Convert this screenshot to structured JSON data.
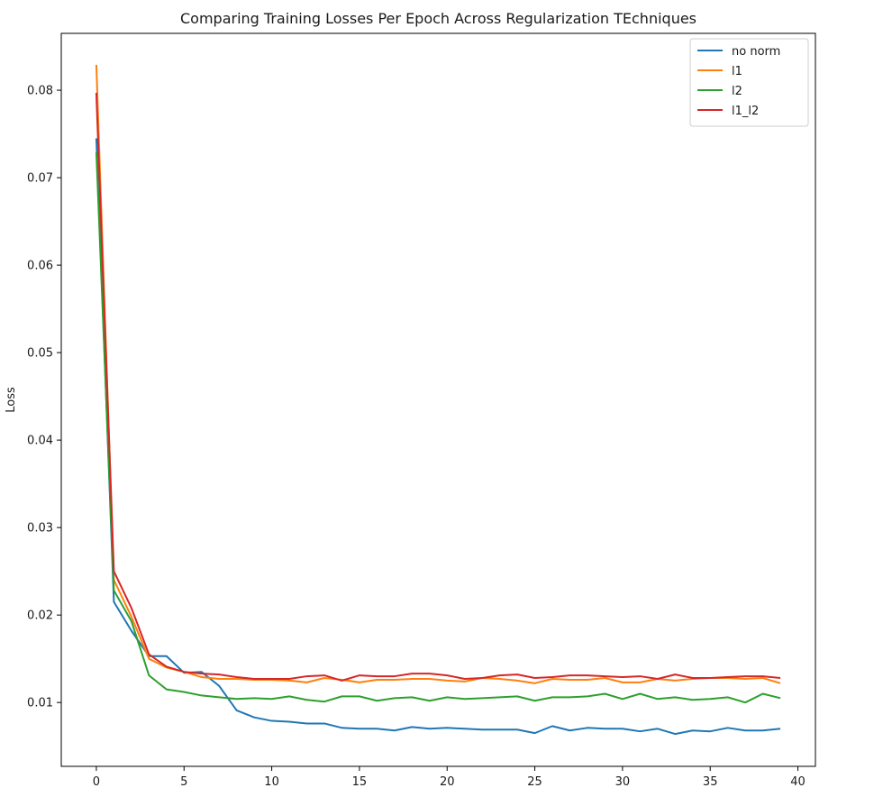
{
  "chart_data": {
    "type": "line",
    "title": "Comparing Training Losses Per Epoch Across Regularization TEchniques",
    "xlabel": "",
    "ylabel": "Loss",
    "xlim": [
      -2,
      41
    ],
    "ylim": [
      0.0027,
      0.0865
    ],
    "xticks": [
      0,
      5,
      10,
      15,
      20,
      25,
      30,
      35,
      40
    ],
    "yticks": [
      0.01,
      0.02,
      0.03,
      0.04,
      0.05,
      0.06,
      0.07,
      0.08
    ],
    "ytick_labels": [
      "0.01",
      "0.02",
      "0.03",
      "0.04",
      "0.05",
      "0.06",
      "0.07",
      "0.08"
    ],
    "legend_position": "upper right",
    "grid": false,
    "x": [
      0,
      1,
      2,
      3,
      4,
      5,
      6,
      7,
      8,
      9,
      10,
      11,
      12,
      13,
      14,
      15,
      16,
      17,
      18,
      19,
      20,
      21,
      22,
      23,
      24,
      25,
      26,
      27,
      28,
      29,
      30,
      31,
      32,
      33,
      34,
      35,
      36,
      37,
      38,
      39
    ],
    "series": [
      {
        "name": "no norm",
        "color": "#1f77b4",
        "values": [
          0.0745,
          0.0215,
          0.0182,
          0.0153,
          0.0153,
          0.0134,
          0.0135,
          0.0119,
          0.0091,
          0.0083,
          0.0079,
          0.0078,
          0.0076,
          0.0076,
          0.0071,
          0.007,
          0.007,
          0.0068,
          0.0072,
          0.007,
          0.0071,
          0.007,
          0.0069,
          0.0069,
          0.0069,
          0.0065,
          0.0073,
          0.0068,
          0.0071,
          0.007,
          0.007,
          0.0067,
          0.007,
          0.0064,
          0.0068,
          0.0067,
          0.0071,
          0.0068,
          0.0068,
          0.007
        ]
      },
      {
        "name": "l1",
        "color": "#ff7f0e",
        "values": [
          0.0829,
          0.024,
          0.0198,
          0.015,
          0.014,
          0.0135,
          0.0129,
          0.0127,
          0.0127,
          0.0126,
          0.0126,
          0.0125,
          0.0123,
          0.0128,
          0.0126,
          0.0123,
          0.0126,
          0.0126,
          0.0127,
          0.0127,
          0.0125,
          0.0124,
          0.0128,
          0.0127,
          0.0125,
          0.0122,
          0.0127,
          0.0126,
          0.0126,
          0.0128,
          0.0123,
          0.0123,
          0.0127,
          0.0125,
          0.0127,
          0.0128,
          0.0128,
          0.0127,
          0.0128,
          0.0122
        ]
      },
      {
        "name": "l2",
        "color": "#2ca02c",
        "values": [
          0.0729,
          0.0228,
          0.0193,
          0.0131,
          0.0115,
          0.0112,
          0.0108,
          0.0106,
          0.0104,
          0.0105,
          0.0104,
          0.0107,
          0.0103,
          0.0101,
          0.0107,
          0.0107,
          0.0102,
          0.0105,
          0.0106,
          0.0102,
          0.0106,
          0.0104,
          0.0105,
          0.0106,
          0.0107,
          0.0102,
          0.0106,
          0.0106,
          0.0107,
          0.011,
          0.0104,
          0.011,
          0.0104,
          0.0106,
          0.0103,
          0.0104,
          0.0106,
          0.01,
          0.011,
          0.0105
        ]
      },
      {
        "name": "l1_l2",
        "color": "#d62728",
        "values": [
          0.0797,
          0.025,
          0.0208,
          0.0155,
          0.0141,
          0.0135,
          0.0133,
          0.0132,
          0.0129,
          0.0127,
          0.0127,
          0.0127,
          0.013,
          0.0131,
          0.0125,
          0.0131,
          0.013,
          0.013,
          0.0133,
          0.0133,
          0.0131,
          0.0127,
          0.0128,
          0.0131,
          0.0132,
          0.0128,
          0.0129,
          0.0131,
          0.0131,
          0.013,
          0.0129,
          0.013,
          0.0127,
          0.0132,
          0.0128,
          0.0128,
          0.0129,
          0.013,
          0.013,
          0.0128
        ]
      }
    ]
  }
}
